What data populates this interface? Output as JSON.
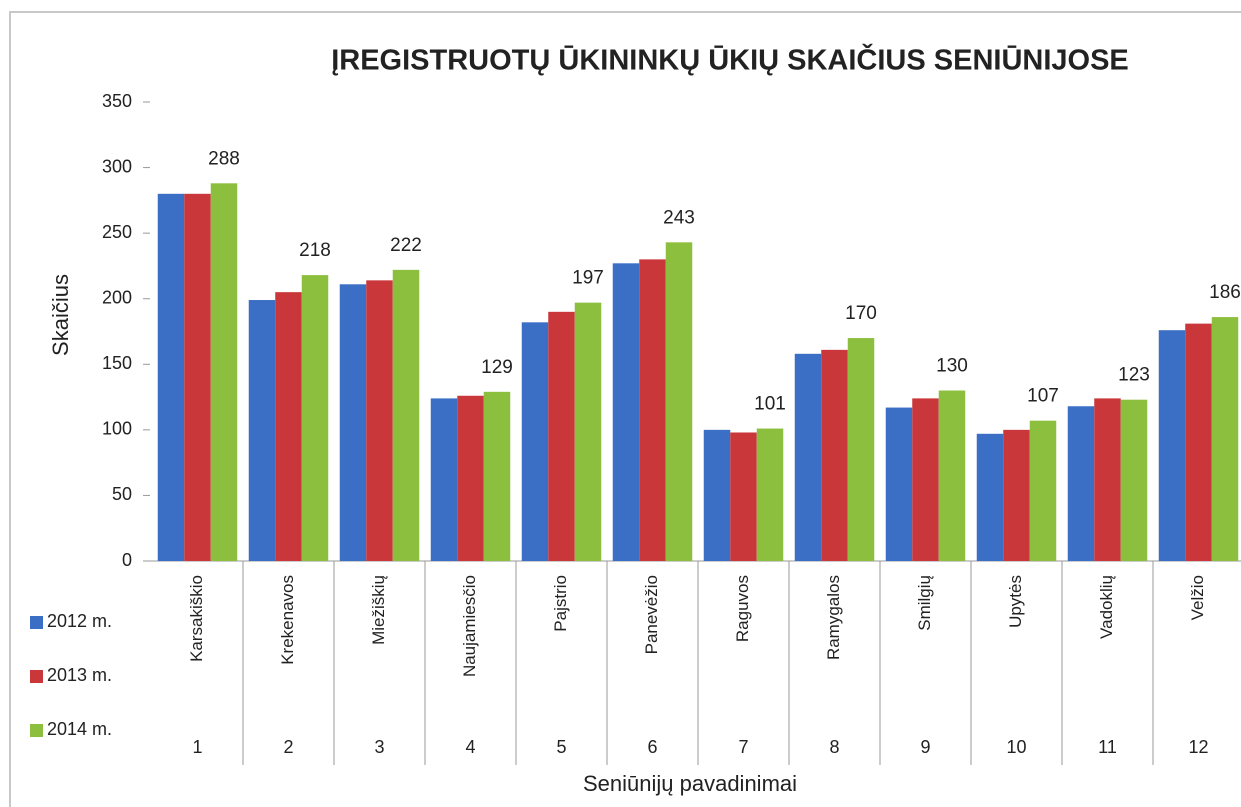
{
  "chart_data": {
    "type": "bar",
    "title": "ĮREGISTRUOTŲ ŪKININKŲ ŪKIŲ SKAIČIUS SENIŪNIJOSE",
    "x_label": "Seniūnijų pavadinimai",
    "y_label": "Skaičius",
    "categories": [
      "Karsakiškio",
      "Krekenavos",
      "Miežiškių",
      "Naujamiesčio",
      "Pajstrio",
      "Panevėžio",
      "Raguvos",
      "Ramygalos",
      "Smilgių",
      "Upytės",
      "Vadoklių",
      "Velžio"
    ],
    "category_numbers": [
      1,
      2,
      3,
      4,
      5,
      6,
      7,
      8,
      9,
      10,
      11,
      12
    ],
    "series": [
      {
        "name": "2012 m.",
        "color": "#3b6fc6",
        "values": [
          280,
          199,
          211,
          124,
          182,
          227,
          100,
          158,
          117,
          97,
          118,
          176
        ]
      },
      {
        "name": "2013 m.",
        "color": "#c9373a",
        "values": [
          280,
          205,
          214,
          126,
          190,
          230,
          98,
          161,
          124,
          100,
          124,
          181
        ]
      },
      {
        "name": "2014 m.",
        "color": "#8dbf3f",
        "values": [
          288,
          218,
          222,
          129,
          197,
          243,
          101,
          170,
          130,
          107,
          123,
          186
        ],
        "data_labels": true
      }
    ],
    "ylim": [
      0,
      350
    ],
    "yticks": [
      0,
      50,
      100,
      150,
      200,
      250,
      300,
      350
    ],
    "grid": false
  }
}
